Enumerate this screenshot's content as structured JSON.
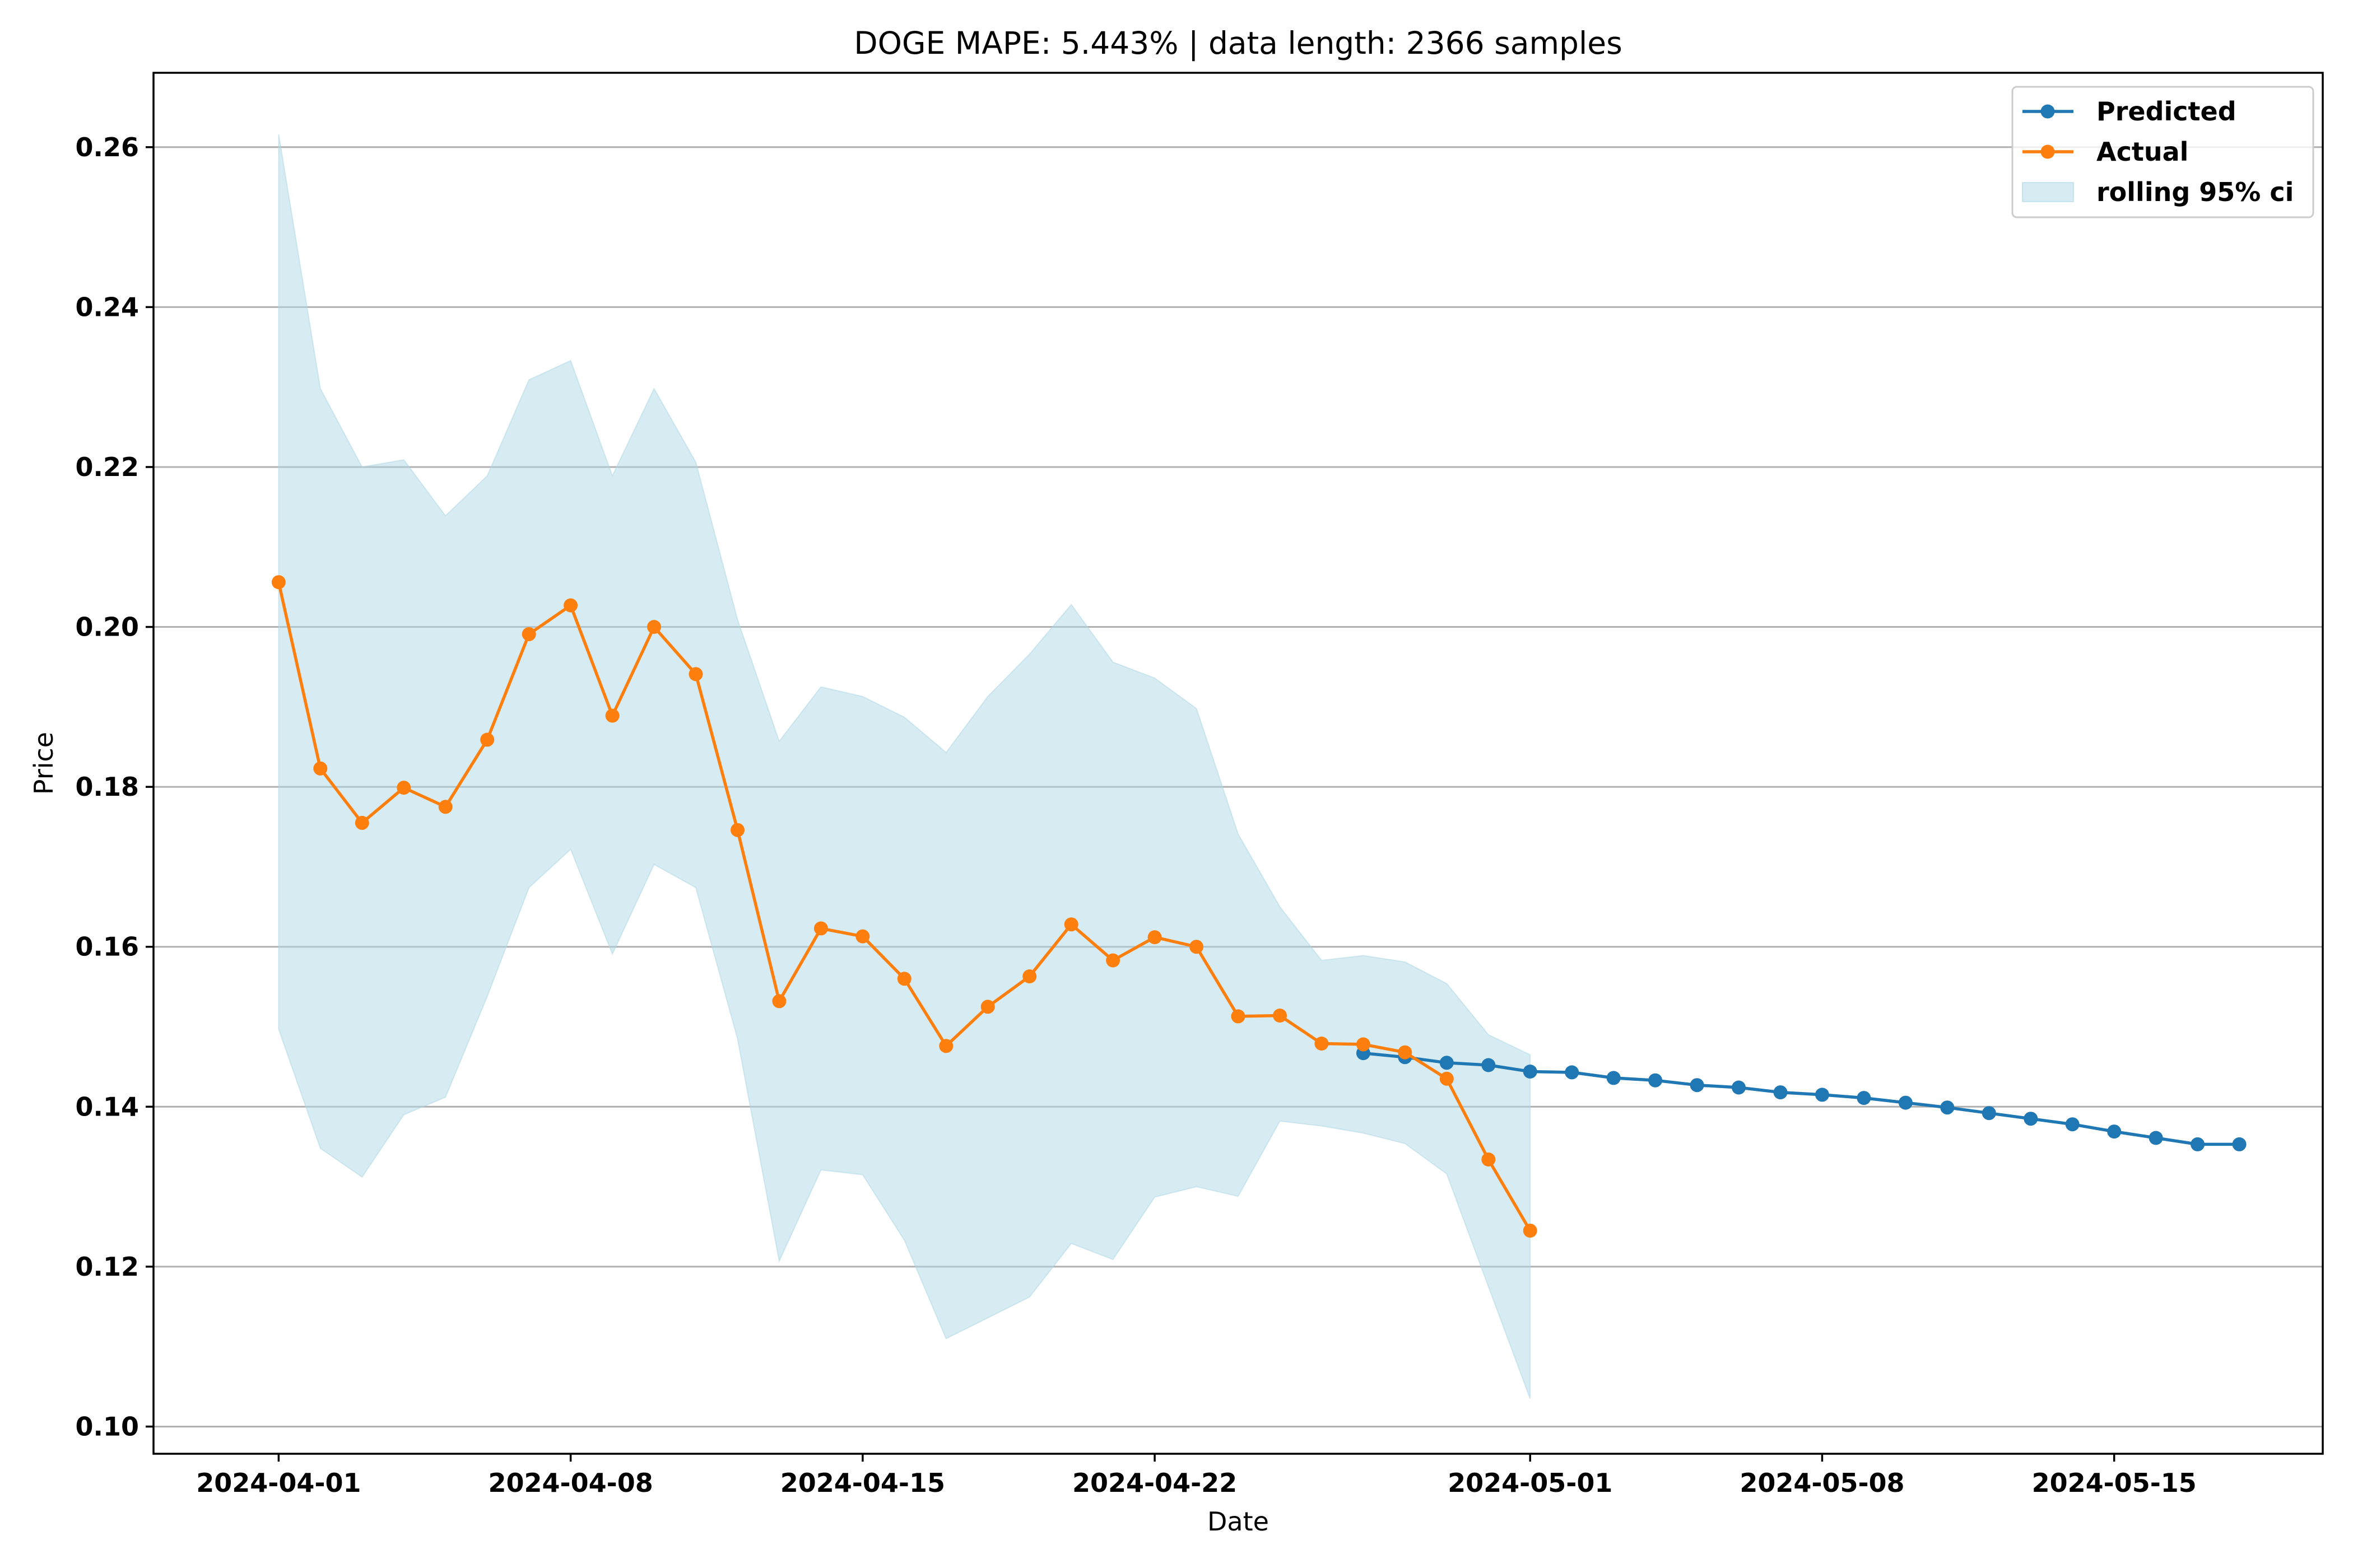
{
  "chart_data": {
    "type": "line",
    "title": "DOGE MAPE: 5.443% | data length: 2366 samples",
    "xlabel": "Date",
    "ylabel": "Price",
    "x_type": "date",
    "xlim": [
      "2024-03-29",
      "2024-05-20"
    ],
    "ylim": [
      0.0966,
      0.2693
    ],
    "grid": "horizontal",
    "legend_position": "upper right",
    "x_ticks": [
      "2024-04-01",
      "2024-04-08",
      "2024-04-15",
      "2024-04-22",
      "2024-05-01",
      "2024-05-08",
      "2024-05-15"
    ],
    "y_ticks": [
      0.1,
      0.12,
      0.14,
      0.16,
      0.18,
      0.2,
      0.22,
      0.24,
      0.26
    ],
    "y_tick_labels": [
      "0.10",
      "0.12",
      "0.14",
      "0.16",
      "0.18",
      "0.20",
      "0.22",
      "0.24",
      "0.26"
    ],
    "series": [
      {
        "name": "Predicted",
        "kind": "line-marker",
        "color": "#1f77b4",
        "x": [
          "2024-04-27",
          "2024-04-28",
          "2024-04-29",
          "2024-04-30",
          "2024-05-01",
          "2024-05-02",
          "2024-05-03",
          "2024-05-04",
          "2024-05-05",
          "2024-05-06",
          "2024-05-07",
          "2024-05-08",
          "2024-05-09",
          "2024-05-10",
          "2024-05-11",
          "2024-05-12",
          "2024-05-13",
          "2024-05-14",
          "2024-05-15",
          "2024-05-16",
          "2024-05-17",
          "2024-05-18"
        ],
        "values": [
          0.1467,
          0.1462,
          0.1455,
          0.1452,
          0.1444,
          0.1443,
          0.1436,
          0.1433,
          0.1427,
          0.1424,
          0.1418,
          0.1415,
          0.1411,
          0.1405,
          0.1399,
          0.1392,
          0.1385,
          0.1378,
          0.1369,
          0.1361,
          0.1353,
          0.1353
        ]
      },
      {
        "name": "Actual",
        "kind": "line-marker",
        "color": "#ff7f0e",
        "x": [
          "2024-04-01",
          "2024-04-02",
          "2024-04-03",
          "2024-04-04",
          "2024-04-05",
          "2024-04-06",
          "2024-04-07",
          "2024-04-08",
          "2024-04-09",
          "2024-04-10",
          "2024-04-11",
          "2024-04-12",
          "2024-04-13",
          "2024-04-14",
          "2024-04-15",
          "2024-04-16",
          "2024-04-17",
          "2024-04-18",
          "2024-04-19",
          "2024-04-20",
          "2024-04-21",
          "2024-04-22",
          "2024-04-23",
          "2024-04-24",
          "2024-04-25",
          "2024-04-26",
          "2024-04-27",
          "2024-04-28",
          "2024-04-29",
          "2024-04-30",
          "2024-05-01"
        ],
        "values": [
          0.2056,
          0.1823,
          0.1755,
          0.1799,
          0.1775,
          0.1859,
          0.1991,
          0.2027,
          0.1889,
          0.2,
          0.1941,
          0.1746,
          0.1532,
          0.1623,
          0.1613,
          0.156,
          0.1476,
          0.1525,
          0.1563,
          0.1628,
          0.1583,
          0.1612,
          0.16,
          0.1513,
          0.1514,
          0.1479,
          0.1478,
          0.1468,
          0.1435,
          0.1334,
          0.1245
        ]
      }
    ],
    "band": {
      "name": "rolling 95% ci",
      "color": "#add8e6",
      "alpha": 0.5,
      "x": [
        "2024-04-01",
        "2024-04-02",
        "2024-04-03",
        "2024-04-04",
        "2024-04-05",
        "2024-04-06",
        "2024-04-07",
        "2024-04-08",
        "2024-04-09",
        "2024-04-10",
        "2024-04-11",
        "2024-04-12",
        "2024-04-13",
        "2024-04-14",
        "2024-04-15",
        "2024-04-16",
        "2024-04-17",
        "2024-04-18",
        "2024-04-19",
        "2024-04-20",
        "2024-04-21",
        "2024-04-22",
        "2024-04-23",
        "2024-04-24",
        "2024-04-25",
        "2024-04-26",
        "2024-04-27",
        "2024-04-28",
        "2024-04-29",
        "2024-04-30",
        "2024-05-01"
      ],
      "upper": [
        0.2616,
        0.2298,
        0.22,
        0.2209,
        0.2139,
        0.2189,
        0.2309,
        0.2333,
        0.2189,
        0.2298,
        0.2206,
        0.2009,
        0.1857,
        0.1925,
        0.1913,
        0.1887,
        0.1843,
        0.1913,
        0.1966,
        0.2028,
        0.1956,
        0.1936,
        0.1898,
        0.1741,
        0.165,
        0.1583,
        0.1589,
        0.1581,
        0.1554,
        0.149,
        0.1465
      ],
      "lower": [
        0.1497,
        0.1348,
        0.1312,
        0.139,
        0.1412,
        0.1538,
        0.1674,
        0.1722,
        0.1591,
        0.1703,
        0.1674,
        0.1485,
        0.1207,
        0.1321,
        0.1315,
        0.1233,
        0.111,
        0.1136,
        0.1162,
        0.1229,
        0.1209,
        0.1287,
        0.13,
        0.1288,
        0.1382,
        0.1376,
        0.1367,
        0.1354,
        0.1316,
        0.1175,
        0.1035
      ]
    }
  }
}
